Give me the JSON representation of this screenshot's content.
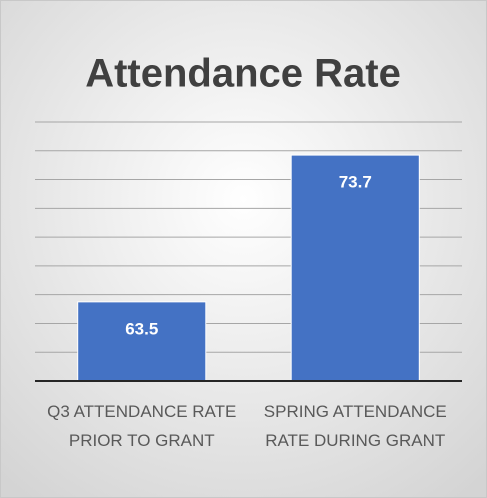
{
  "chart_data": {
    "type": "bar",
    "title": "Attendance Rate",
    "categories": [
      "Q3 ATTENDANCE RATE PRIOR TO GRANT",
      "SPRING ATTENDANCE RATE DURING GRANT"
    ],
    "values": [
      63.5,
      73.7
    ],
    "color": "#4472c4",
    "ylim": [
      58,
      76
    ],
    "yticks": [
      58,
      60,
      62,
      64,
      66,
      68,
      70,
      72,
      74,
      76
    ],
    "grid": true
  }
}
